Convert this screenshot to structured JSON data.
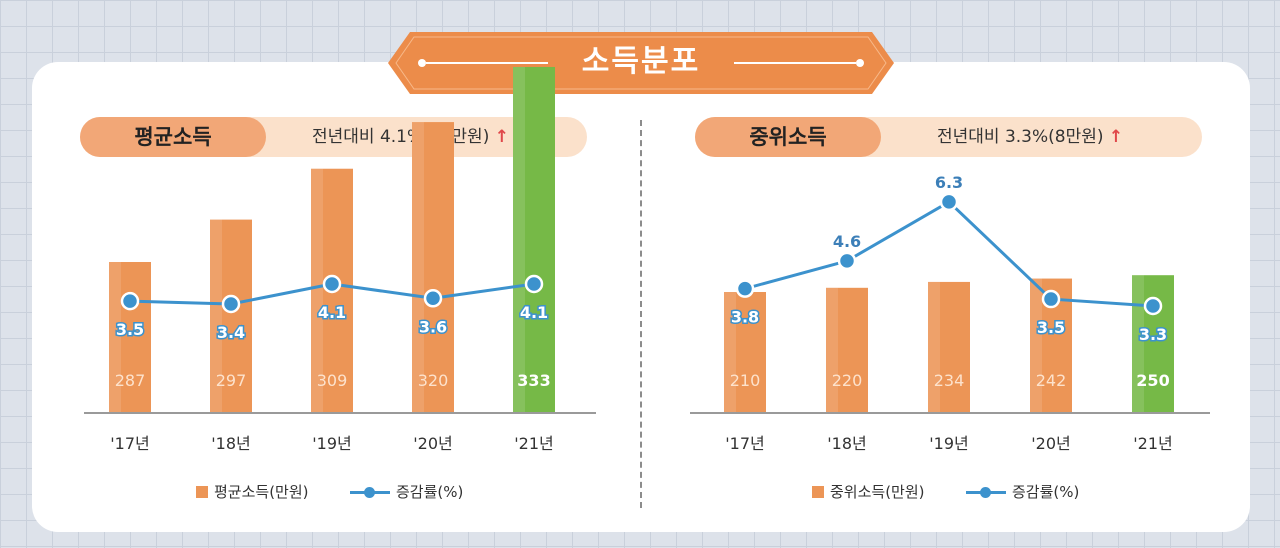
{
  "page": {
    "title": "소득분포"
  },
  "colors": {
    "banner": "#ec8c4a",
    "bar": "#ec9556",
    "bar_highlight": "#76b947",
    "line": "#3c92cd",
    "head_pill": "#f2a777",
    "note_pill": "#fbe1cb",
    "arrow": "#e0484a"
  },
  "left_panel": {
    "heading": "평균소득",
    "note": "전년대비 4.1%(13만원)",
    "arrow": "↑"
  },
  "right_panel": {
    "heading": "중위소득",
    "note": "전년대비 3.3%(8만원)",
    "arrow": "↑"
  },
  "chart_data": [
    {
      "type": "bar+line",
      "title": "평균소득",
      "categories": [
        "'17년",
        "'18년",
        "'19년",
        "'20년",
        "'21년"
      ],
      "series": [
        {
          "name": "평균소득(만원)",
          "type": "bar",
          "values": [
            287,
            297,
            309,
            320,
            333
          ],
          "highlight_index": 4
        },
        {
          "name": "증감률(%)",
          "type": "line",
          "values": [
            3.5,
            3.4,
            4.1,
            3.6,
            4.1
          ]
        }
      ],
      "legend": [
        "평균소득(만원)",
        "증감률(%)"
      ],
      "legend_position": "bottom"
    },
    {
      "type": "bar+line",
      "title": "중위소득",
      "categories": [
        "'17년",
        "'18년",
        "'19년",
        "'20년",
        "'21년"
      ],
      "series": [
        {
          "name": "중위소득(만원)",
          "type": "bar",
          "values": [
            210,
            220,
            234,
            242,
            250
          ],
          "highlight_index": 4
        },
        {
          "name": "증감률(%)",
          "type": "line",
          "values": [
            3.8,
            4.6,
            6.3,
            3.5,
            3.3
          ]
        }
      ],
      "legend": [
        "중위소득(만원)",
        "증감률(%)"
      ],
      "legend_position": "bottom"
    }
  ]
}
